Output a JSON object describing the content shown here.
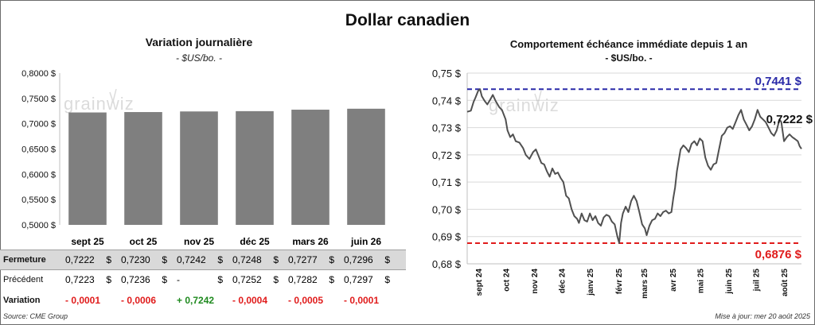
{
  "title": "Dollar canadien",
  "left_chart": {
    "title": "Variation  journalière",
    "unit": "- $US/bo. -"
  },
  "right_chart": {
    "title": "Comportement échéance immédiate depuis 1 an",
    "unit": "- $US/bo. -",
    "max_label": "0,7441 $",
    "min_label": "0,6876 $",
    "last_label": "0,7222 $"
  },
  "watermark": "grainwiz",
  "table": {
    "contracts": [
      "sept 25",
      "oct 25",
      "nov 25",
      "déc 25",
      "mars 26",
      "juin 26"
    ],
    "rows": [
      {
        "label": "Fermeture",
        "values": [
          "0,7222",
          "0,7230",
          "0,7242",
          "0,7248",
          "0,7277",
          "0,7296"
        ],
        "currency": "$"
      },
      {
        "label": "Précédent",
        "values": [
          "0,7223",
          "0,7236",
          "-",
          "0,7252",
          "0,7282",
          "0,7297"
        ],
        "currency": "$"
      },
      {
        "label": "Variation",
        "values": [
          "- 0,0001",
          "- 0,0006",
          "+ 0,7242",
          "- 0,0004",
          "- 0,0005",
          "- 0,0001"
        ]
      }
    ]
  },
  "footer": {
    "source": "Source: CME Group",
    "updated": "Mise à jour: mer 20 août 2025"
  },
  "colors": {
    "bar": "#7f7f7f",
    "line": "#505050",
    "max_line": "#2a2aa8",
    "min_line": "#e01b1b",
    "negative": "#e01b1b",
    "positive": "#1f8a1f"
  },
  "chart_data": [
    {
      "type": "bar",
      "title": "Variation  journalière",
      "subtitle": "- $US/bo. -",
      "categories": [
        "sept 25",
        "oct 25",
        "nov 25",
        "déc 25",
        "mars 26",
        "juin 26"
      ],
      "values": [
        0.7222,
        0.723,
        0.7242,
        0.7248,
        0.7277,
        0.7296
      ],
      "ylim": [
        0.5,
        0.8
      ],
      "yticks": [
        "0,5000 $",
        "0,5500 $",
        "0,6000 $",
        "0,6500 $",
        "0,7000 $",
        "0,7500 $",
        "0,8000 $"
      ],
      "grid": false
    },
    {
      "type": "line",
      "title": "Comportement échéance immédiate depuis 1 an",
      "subtitle": "- $US/bo. -",
      "ylim": [
        0.68,
        0.75
      ],
      "yticks": [
        "0,68 $",
        "0,69 $",
        "0,70 $",
        "0,71 $",
        "0,72 $",
        "0,73 $",
        "0,74 $",
        "0,75 $"
      ],
      "xticks": [
        "sept 24",
        "oct 24",
        "nov 24",
        "déc 24",
        "janv 25",
        "févr 25",
        "mars 25",
        "avr 25",
        "mai 25",
        "juin 25",
        "juil 25",
        "août 25"
      ],
      "x_range": [
        "2024-08-20",
        "2025-08-20"
      ],
      "max_value": 0.7441,
      "min_value": 0.6876,
      "last_value": 0.7222,
      "grid": true,
      "series": [
        {
          "points": [
            [
              "2024-08-20",
              0.7358
            ],
            [
              "2024-08-24",
              0.7362
            ],
            [
              "2024-08-27",
              0.7395
            ],
            [
              "2024-08-29",
              0.741
            ],
            [
              "2024-09-01",
              0.7435
            ],
            [
              "2024-09-03",
              0.7441
            ],
            [
              "2024-09-05",
              0.7415
            ],
            [
              "2024-09-08",
              0.7398
            ],
            [
              "2024-09-11",
              0.7385
            ],
            [
              "2024-09-14",
              0.7402
            ],
            [
              "2024-09-17",
              0.742
            ],
            [
              "2024-09-20",
              0.7398
            ],
            [
              "2024-09-24",
              0.7375
            ],
            [
              "2024-09-27",
              0.7365
            ],
            [
              "2024-10-01",
              0.733
            ],
            [
              "2024-10-03",
              0.729
            ],
            [
              "2024-10-06",
              0.7265
            ],
            [
              "2024-10-09",
              0.7275
            ],
            [
              "2024-10-12",
              0.725
            ],
            [
              "2024-10-16",
              0.7245
            ],
            [
              "2024-10-20",
              0.7225
            ],
            [
              "2024-10-23",
              0.72
            ],
            [
              "2024-10-27",
              0.7185
            ],
            [
              "2024-10-31",
              0.721
            ],
            [
              "2024-11-03",
              0.722
            ],
            [
              "2024-11-06",
              0.7195
            ],
            [
              "2024-11-09",
              0.717
            ],
            [
              "2024-11-12",
              0.7165
            ],
            [
              "2024-11-15",
              0.714
            ],
            [
              "2024-11-18",
              0.712
            ],
            [
              "2024-11-21",
              0.715
            ],
            [
              "2024-11-24",
              0.713
            ],
            [
              "2024-11-27",
              0.7135
            ],
            [
              "2024-11-30",
              0.7115
            ],
            [
              "2024-12-03",
              0.71
            ],
            [
              "2024-12-06",
              0.705
            ],
            [
              "2024-12-09",
              0.704
            ],
            [
              "2024-12-12",
              0.7
            ],
            [
              "2024-12-15",
              0.6975
            ],
            [
              "2024-12-18",
              0.6965
            ],
            [
              "2024-12-20",
              0.695
            ],
            [
              "2024-12-23",
              0.6985
            ],
            [
              "2024-12-26",
              0.696
            ],
            [
              "2024-12-29",
              0.6955
            ],
            [
              "2025-01-01",
              0.6985
            ],
            [
              "2025-01-04",
              0.696
            ],
            [
              "2025-01-07",
              0.6975
            ],
            [
              "2025-01-10",
              0.695
            ],
            [
              "2025-01-13",
              0.694
            ],
            [
              "2025-01-16",
              0.697
            ],
            [
              "2025-01-19",
              0.698
            ],
            [
              "2025-01-22",
              0.6975
            ],
            [
              "2025-01-25",
              0.6955
            ],
            [
              "2025-01-28",
              0.6945
            ],
            [
              "2025-01-31",
              0.69
            ],
            [
              "2025-02-02",
              0.6876
            ],
            [
              "2025-02-04",
              0.695
            ],
            [
              "2025-02-06",
              0.6985
            ],
            [
              "2025-02-09",
              0.701
            ],
            [
              "2025-02-12",
              0.699
            ],
            [
              "2025-02-15",
              0.703
            ],
            [
              "2025-02-18",
              0.705
            ],
            [
              "2025-02-21",
              0.703
            ],
            [
              "2025-02-24",
              0.699
            ],
            [
              "2025-02-27",
              0.6945
            ],
            [
              "2025-03-02",
              0.693
            ],
            [
              "2025-03-04",
              0.6905
            ],
            [
              "2025-03-07",
              0.694
            ],
            [
              "2025-03-10",
              0.696
            ],
            [
              "2025-03-13",
              0.6965
            ],
            [
              "2025-03-16",
              0.6985
            ],
            [
              "2025-03-19",
              0.6975
            ],
            [
              "2025-03-22",
              0.699
            ],
            [
              "2025-03-25",
              0.6995
            ],
            [
              "2025-03-28",
              0.6985
            ],
            [
              "2025-03-31",
              0.699
            ],
            [
              "2025-04-02",
              0.704
            ],
            [
              "2025-04-04",
              0.708
            ],
            [
              "2025-04-06",
              0.714
            ],
            [
              "2025-04-08",
              0.718
            ],
            [
              "2025-04-10",
              0.722
            ],
            [
              "2025-04-13",
              0.7235
            ],
            [
              "2025-04-16",
              0.7225
            ],
            [
              "2025-04-19",
              0.721
            ],
            [
              "2025-04-22",
              0.724
            ],
            [
              "2025-04-25",
              0.725
            ],
            [
              "2025-04-28",
              0.7235
            ],
            [
              "2025-05-01",
              0.726
            ],
            [
              "2025-05-04",
              0.725
            ],
            [
              "2025-05-07",
              0.719
            ],
            [
              "2025-05-10",
              0.716
            ],
            [
              "2025-05-13",
              0.7145
            ],
            [
              "2025-05-16",
              0.7165
            ],
            [
              "2025-05-19",
              0.717
            ],
            [
              "2025-05-22",
              0.722
            ],
            [
              "2025-05-25",
              0.727
            ],
            [
              "2025-05-28",
              0.728
            ],
            [
              "2025-05-31",
              0.73
            ],
            [
              "2025-06-03",
              0.7305
            ],
            [
              "2025-06-06",
              0.7295
            ],
            [
              "2025-06-09",
              0.732
            ],
            [
              "2025-06-12",
              0.7345
            ],
            [
              "2025-06-15",
              0.7365
            ],
            [
              "2025-06-18",
              0.733
            ],
            [
              "2025-06-21",
              0.731
            ],
            [
              "2025-06-24",
              0.729
            ],
            [
              "2025-06-27",
              0.7305
            ],
            [
              "2025-06-30",
              0.733
            ],
            [
              "2025-07-03",
              0.7365
            ],
            [
              "2025-07-06",
              0.734
            ],
            [
              "2025-07-09",
              0.733
            ],
            [
              "2025-07-12",
              0.732
            ],
            [
              "2025-07-15",
              0.73
            ],
            [
              "2025-07-18",
              0.728
            ],
            [
              "2025-07-21",
              0.727
            ],
            [
              "2025-07-24",
              0.729
            ],
            [
              "2025-07-27",
              0.733
            ],
            [
              "2025-07-29",
              0.732
            ],
            [
              "2025-08-01",
              0.725
            ],
            [
              "2025-08-04",
              0.7265
            ],
            [
              "2025-08-07",
              0.7275
            ],
            [
              "2025-08-10",
              0.7265
            ],
            [
              "2025-08-13",
              0.7258
            ],
            [
              "2025-08-16",
              0.725
            ],
            [
              "2025-08-18",
              0.7232
            ],
            [
              "2025-08-20",
              0.7222
            ]
          ]
        }
      ]
    }
  ]
}
